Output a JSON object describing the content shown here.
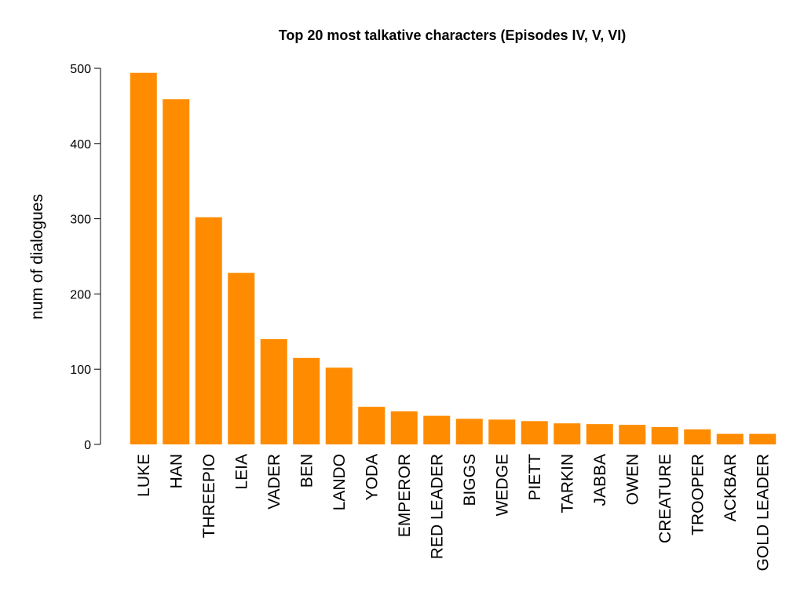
{
  "chart_data": {
    "type": "bar",
    "title": "Top 20 most talkative characters (Episodes IV, V, VI)",
    "xlabel": "",
    "ylabel": "num of dialogues",
    "ylim": [
      0,
      500
    ],
    "yticks": [
      0,
      100,
      200,
      300,
      400,
      500
    ],
    "grid": false,
    "bar_color": "#ff8c00",
    "categories": [
      "LUKE",
      "HAN",
      "THREEPIO",
      "LEIA",
      "VADER",
      "BEN",
      "LANDO",
      "YODA",
      "EMPEROR",
      "RED LEADER",
      "BIGGS",
      "WEDGE",
      "PIETT",
      "TARKIN",
      "JABBA",
      "OWEN",
      "CREATURE",
      "TROOPER",
      "ACKBAR",
      "GOLD LEADER"
    ],
    "values": [
      494,
      459,
      302,
      228,
      140,
      115,
      102,
      50,
      44,
      38,
      34,
      33,
      31,
      28,
      27,
      26,
      23,
      20,
      14,
      14
    ]
  }
}
